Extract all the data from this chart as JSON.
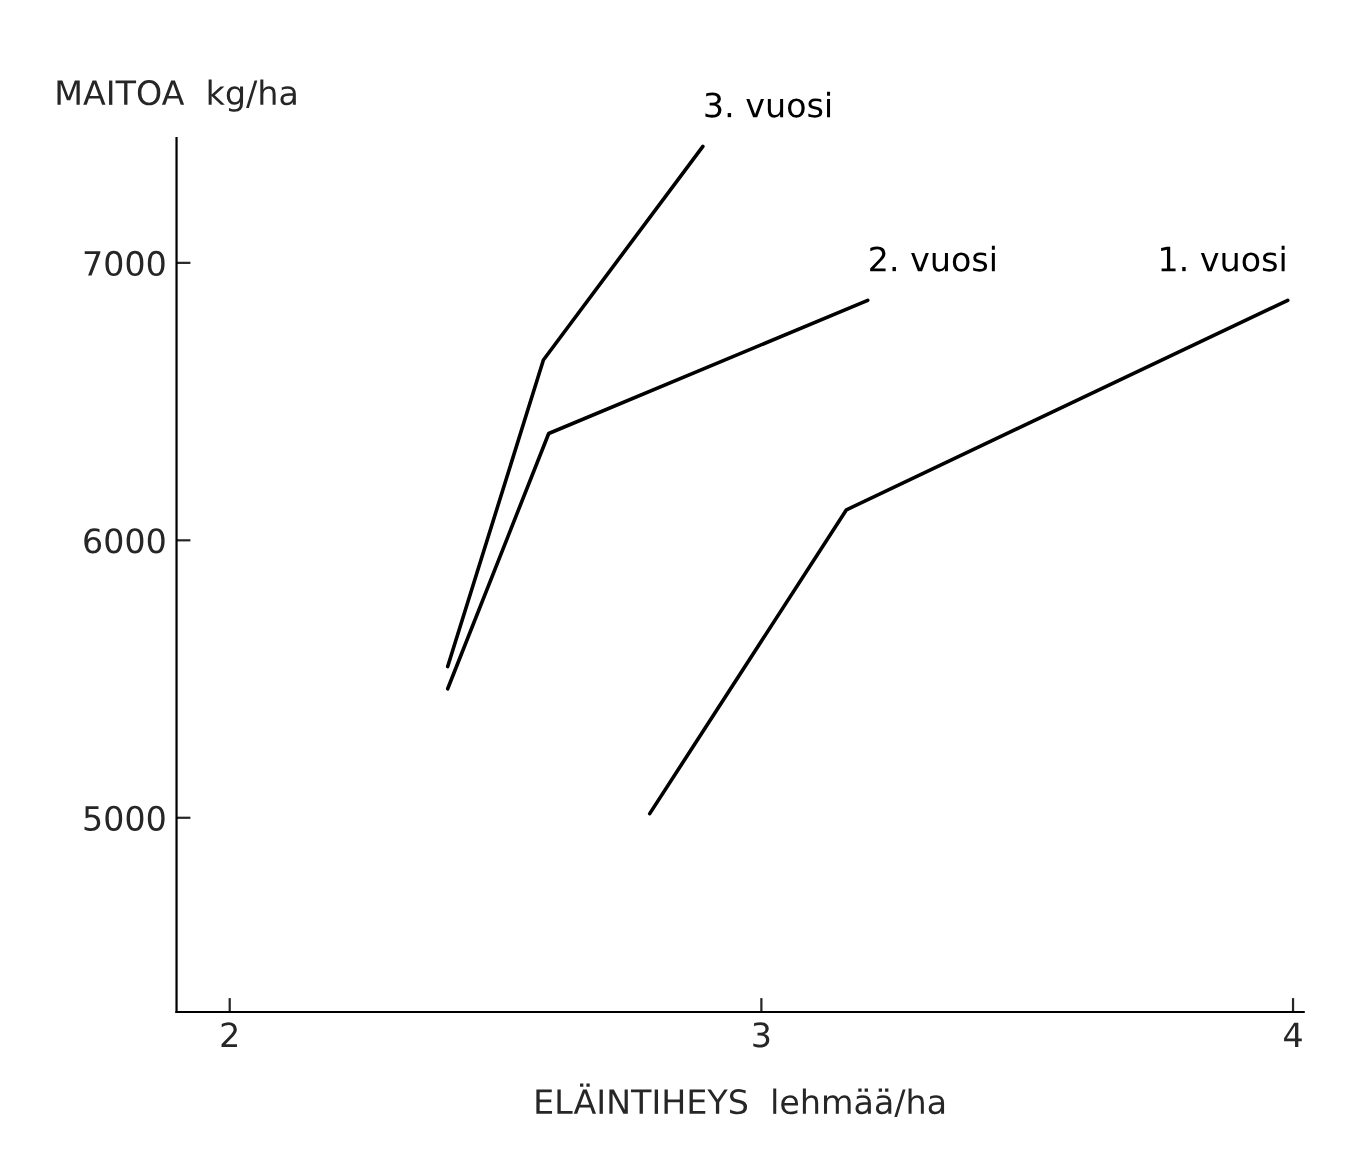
{
  "chart_data": {
    "type": "line",
    "xlabel": "ELÄINTIHEYS  lehmää/ha",
    "ylabel": "MAITOA  kg/ha",
    "xlim": [
      1.9,
      4.02
    ],
    "xticks": [
      2,
      3,
      4
    ],
    "ylim": [
      4300,
      7450
    ],
    "yticks": [
      5000,
      6000,
      7000
    ],
    "grid": false,
    "legend": false,
    "marker": "none",
    "line_style": "solid",
    "series": [
      {
        "name": "3. vuosi",
        "color": "#000000",
        "x": [
          2.41,
          2.59,
          2.89
        ],
        "values": [
          5545,
          6650,
          7420
        ]
      },
      {
        "name": "2. vuosi",
        "color": "#000000",
        "x": [
          2.41,
          2.6,
          3.2
        ],
        "values": [
          5465,
          6385,
          6865
        ]
      },
      {
        "name": "1. vuosi",
        "color": "#000000",
        "x": [
          2.79,
          3.16,
          3.99
        ],
        "values": [
          5015,
          6110,
          6865
        ]
      }
    ]
  }
}
